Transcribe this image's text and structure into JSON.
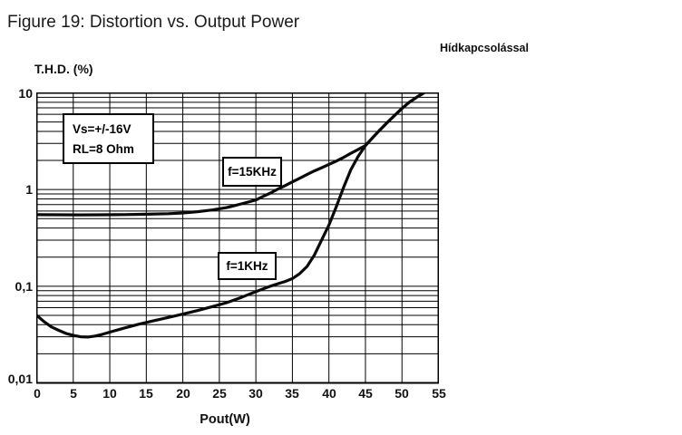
{
  "header": {
    "title": "Figure 19: Distortion vs. Output Power",
    "note": "Hídkapcsolással"
  },
  "chart_data": {
    "type": "line",
    "title": "Figure 19: Distortion vs. Output Power",
    "xlabel": "Pout(W)",
    "ylabel": "T.H.D. (%)",
    "xlim": [
      0,
      55
    ],
    "ylim": [
      0.01,
      10
    ],
    "y_scale": "log",
    "grid": true,
    "x_ticks": [
      0,
      5,
      10,
      15,
      20,
      25,
      30,
      35,
      40,
      45,
      50,
      55
    ],
    "x_tick_labels": [
      "0",
      "5",
      "10",
      "15",
      "20",
      "25",
      "30",
      "35",
      "40",
      "45",
      "50",
      "55"
    ],
    "y_ticks": [
      10,
      1,
      0.1,
      0.01
    ],
    "y_tick_labels": [
      "10",
      "1",
      "0,1",
      "0,01"
    ],
    "annotations": {
      "conditions": [
        "Vs=+/-16V",
        "RL=8 Ohm"
      ]
    },
    "legend_position": "inline-boxes",
    "series": [
      {
        "name": "f=15KHz",
        "points": [
          [
            0,
            0.55
          ],
          [
            3,
            0.548
          ],
          [
            6,
            0.547
          ],
          [
            9,
            0.548
          ],
          [
            12,
            0.551
          ],
          [
            15,
            0.556
          ],
          [
            18,
            0.563
          ],
          [
            20,
            0.572
          ],
          [
            22,
            0.59
          ],
          [
            24,
            0.615
          ],
          [
            26,
            0.65
          ],
          [
            28,
            0.71
          ],
          [
            30,
            0.78
          ],
          [
            31,
            0.85
          ],
          [
            32,
            0.92
          ],
          [
            33,
            1.01
          ],
          [
            34,
            1.1
          ],
          [
            35,
            1.2
          ],
          [
            36,
            1.31
          ],
          [
            37,
            1.43
          ],
          [
            38,
            1.56
          ],
          [
            39,
            1.68
          ],
          [
            40,
            1.82
          ],
          [
            41,
            1.97
          ],
          [
            42,
            2.15
          ],
          [
            43,
            2.37
          ],
          [
            44,
            2.6
          ],
          [
            45,
            2.85
          ],
          [
            46,
            3.45
          ],
          [
            47,
            4.15
          ],
          [
            48,
            4.95
          ],
          [
            49,
            5.85
          ],
          [
            50,
            6.9
          ],
          [
            51,
            8.0
          ],
          [
            52,
            9.0
          ],
          [
            53,
            10
          ]
        ]
      },
      {
        "name": "f=1KHz",
        "points": [
          [
            0,
            0.05
          ],
          [
            1,
            0.043
          ],
          [
            2,
            0.038
          ],
          [
            3,
            0.035
          ],
          [
            4,
            0.0325
          ],
          [
            5,
            0.031
          ],
          [
            6,
            0.03
          ],
          [
            7,
            0.0298
          ],
          [
            8,
            0.0305
          ],
          [
            9,
            0.0318
          ],
          [
            10,
            0.0335
          ],
          [
            12,
            0.037
          ],
          [
            14,
            0.0405
          ],
          [
            16,
            0.044
          ],
          [
            18,
            0.0475
          ],
          [
            20,
            0.0515
          ],
          [
            22,
            0.056
          ],
          [
            24,
            0.0615
          ],
          [
            26,
            0.0675
          ],
          [
            28,
            0.0765
          ],
          [
            30,
            0.088
          ],
          [
            31,
            0.094
          ],
          [
            32,
            0.1
          ],
          [
            33,
            0.106
          ],
          [
            34,
            0.112
          ],
          [
            35,
            0.12
          ],
          [
            36,
            0.135
          ],
          [
            37,
            0.16
          ],
          [
            38,
            0.21
          ],
          [
            39,
            0.3
          ],
          [
            40,
            0.43
          ],
          [
            41,
            0.66
          ],
          [
            42,
            1.05
          ],
          [
            43,
            1.6
          ],
          [
            44,
            2.2
          ],
          [
            45,
            2.85
          ],
          [
            46,
            3.45
          ],
          [
            47,
            4.15
          ],
          [
            48,
            4.95
          ],
          [
            49,
            5.85
          ],
          [
            50,
            6.9
          ],
          [
            51,
            8.0
          ],
          [
            52,
            9.0
          ],
          [
            53,
            10
          ]
        ]
      }
    ]
  }
}
